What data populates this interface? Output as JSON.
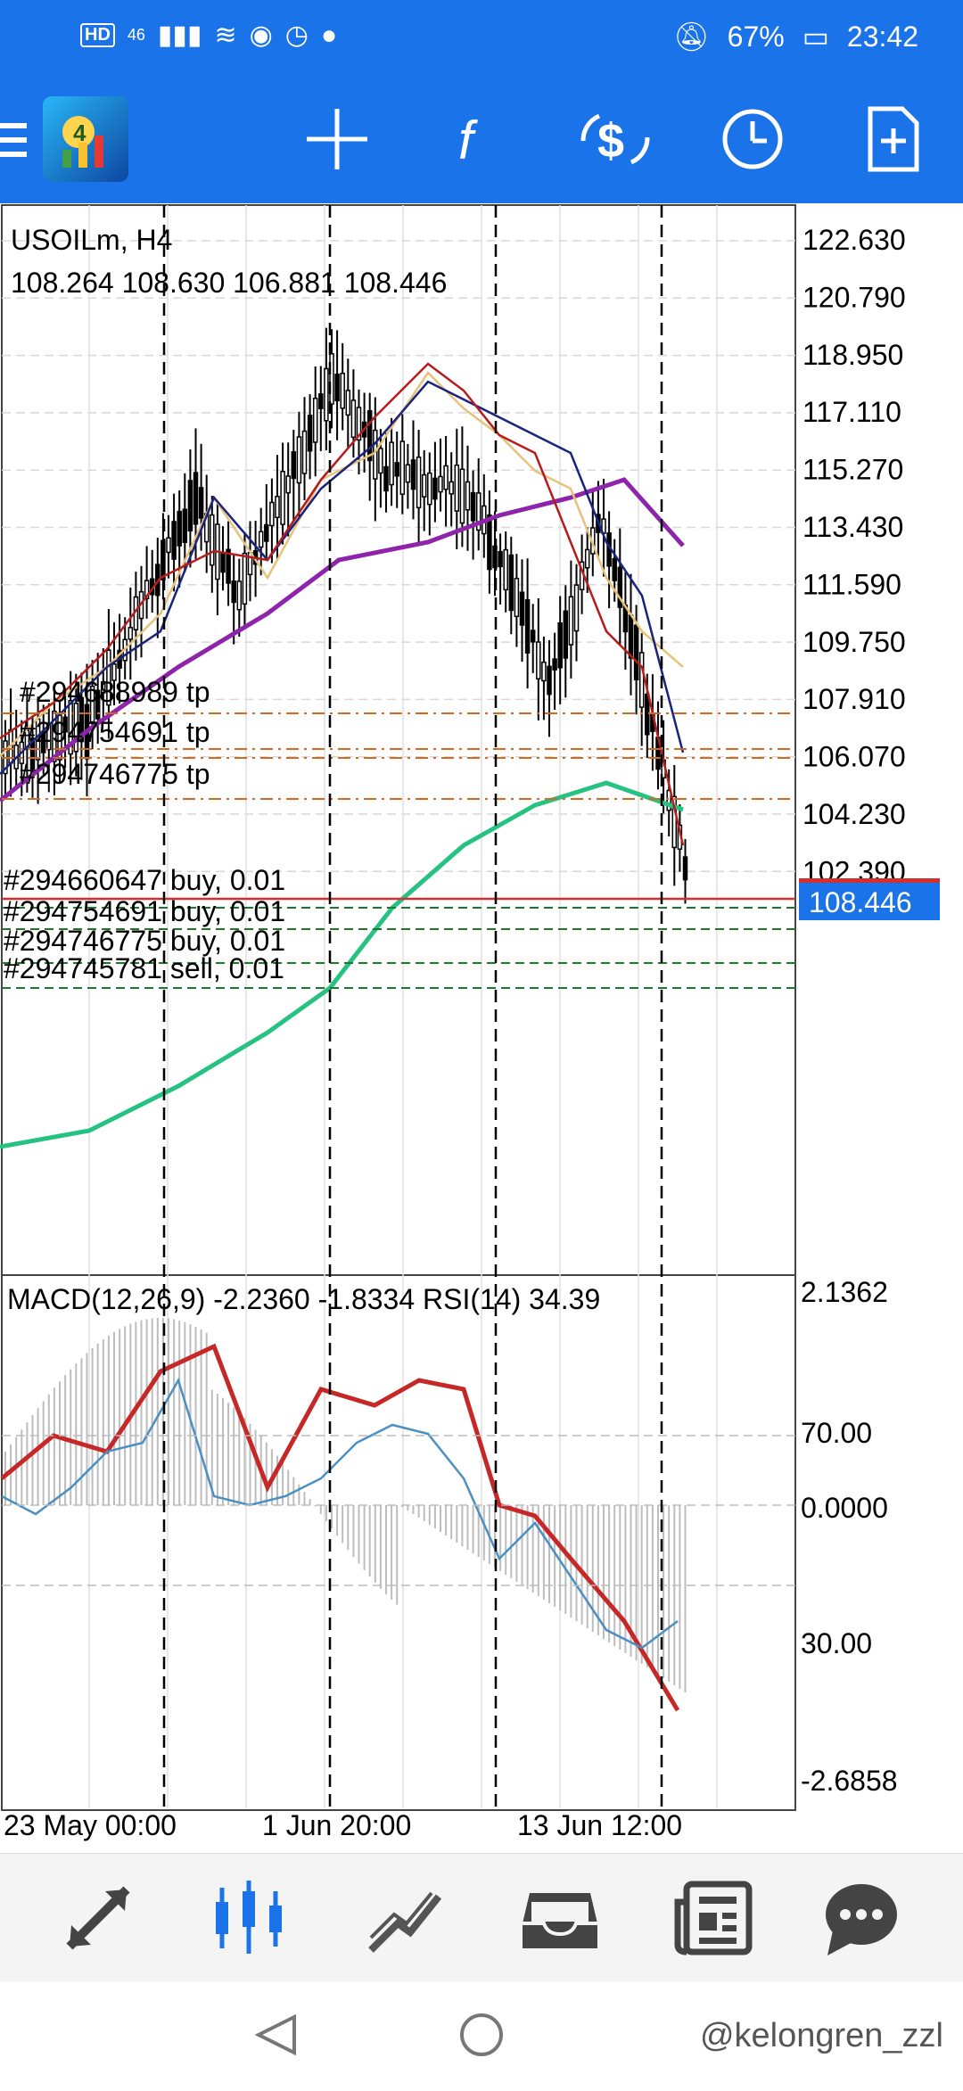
{
  "status": {
    "network": "46",
    "battery": "67%",
    "time": "23:42"
  },
  "toolbar": {
    "icons": [
      "menu-icon",
      "metatrader-logo",
      "crosshair-icon",
      "indicators-icon",
      "trade-icon",
      "timeframe-icon",
      "new-order-icon"
    ]
  },
  "chart": {
    "symbol": "USOILm, H4",
    "ohlc": "108.264 108.630 106.881 108.446",
    "price_labels": [
      "122.630",
      "120.790",
      "118.950",
      "117.110",
      "115.270",
      "113.430",
      "111.590",
      "109.750",
      "107.910",
      "106.070",
      "104.230",
      "102.390"
    ],
    "current_price": "108.446",
    "order_labels": [
      "#294688989 tp",
      "#294754691 tp",
      "#294746775 tp",
      "#294660647 buy, 0.01",
      "#294754691 buy, 0.01",
      "#294746775 buy, 0.01",
      "#294745781 sell, 0.01"
    ],
    "indicator_text": "MACD(12,26,9) -2.2360 -1.8334 RSI(14) 34.39",
    "indicator_labels": [
      "2.1362",
      "70.00",
      "0.0000",
      "30.00",
      "-2.6858"
    ],
    "time_labels": [
      "23 May 00:00",
      "1 Jun 20:00",
      "13 Jun 12:00"
    ],
    "colors": {
      "up": "#1a73e8",
      "line_bid": "#d32f2f",
      "ma_purple": "#8e24aa",
      "ma_green": "#26c281",
      "ma_red": "#b71c1c",
      "ma_navy": "#1a237e",
      "ma_tan": "#e6c27a",
      "macd_signal": "#c62828",
      "rsi": "#4a90c2"
    }
  },
  "bottom_nav": {
    "items": [
      "quotes-icon",
      "chart-icon",
      "trade-icon",
      "history-icon",
      "news-icon",
      "chat-icon"
    ]
  },
  "watermark": "@kelongren_zzl"
}
